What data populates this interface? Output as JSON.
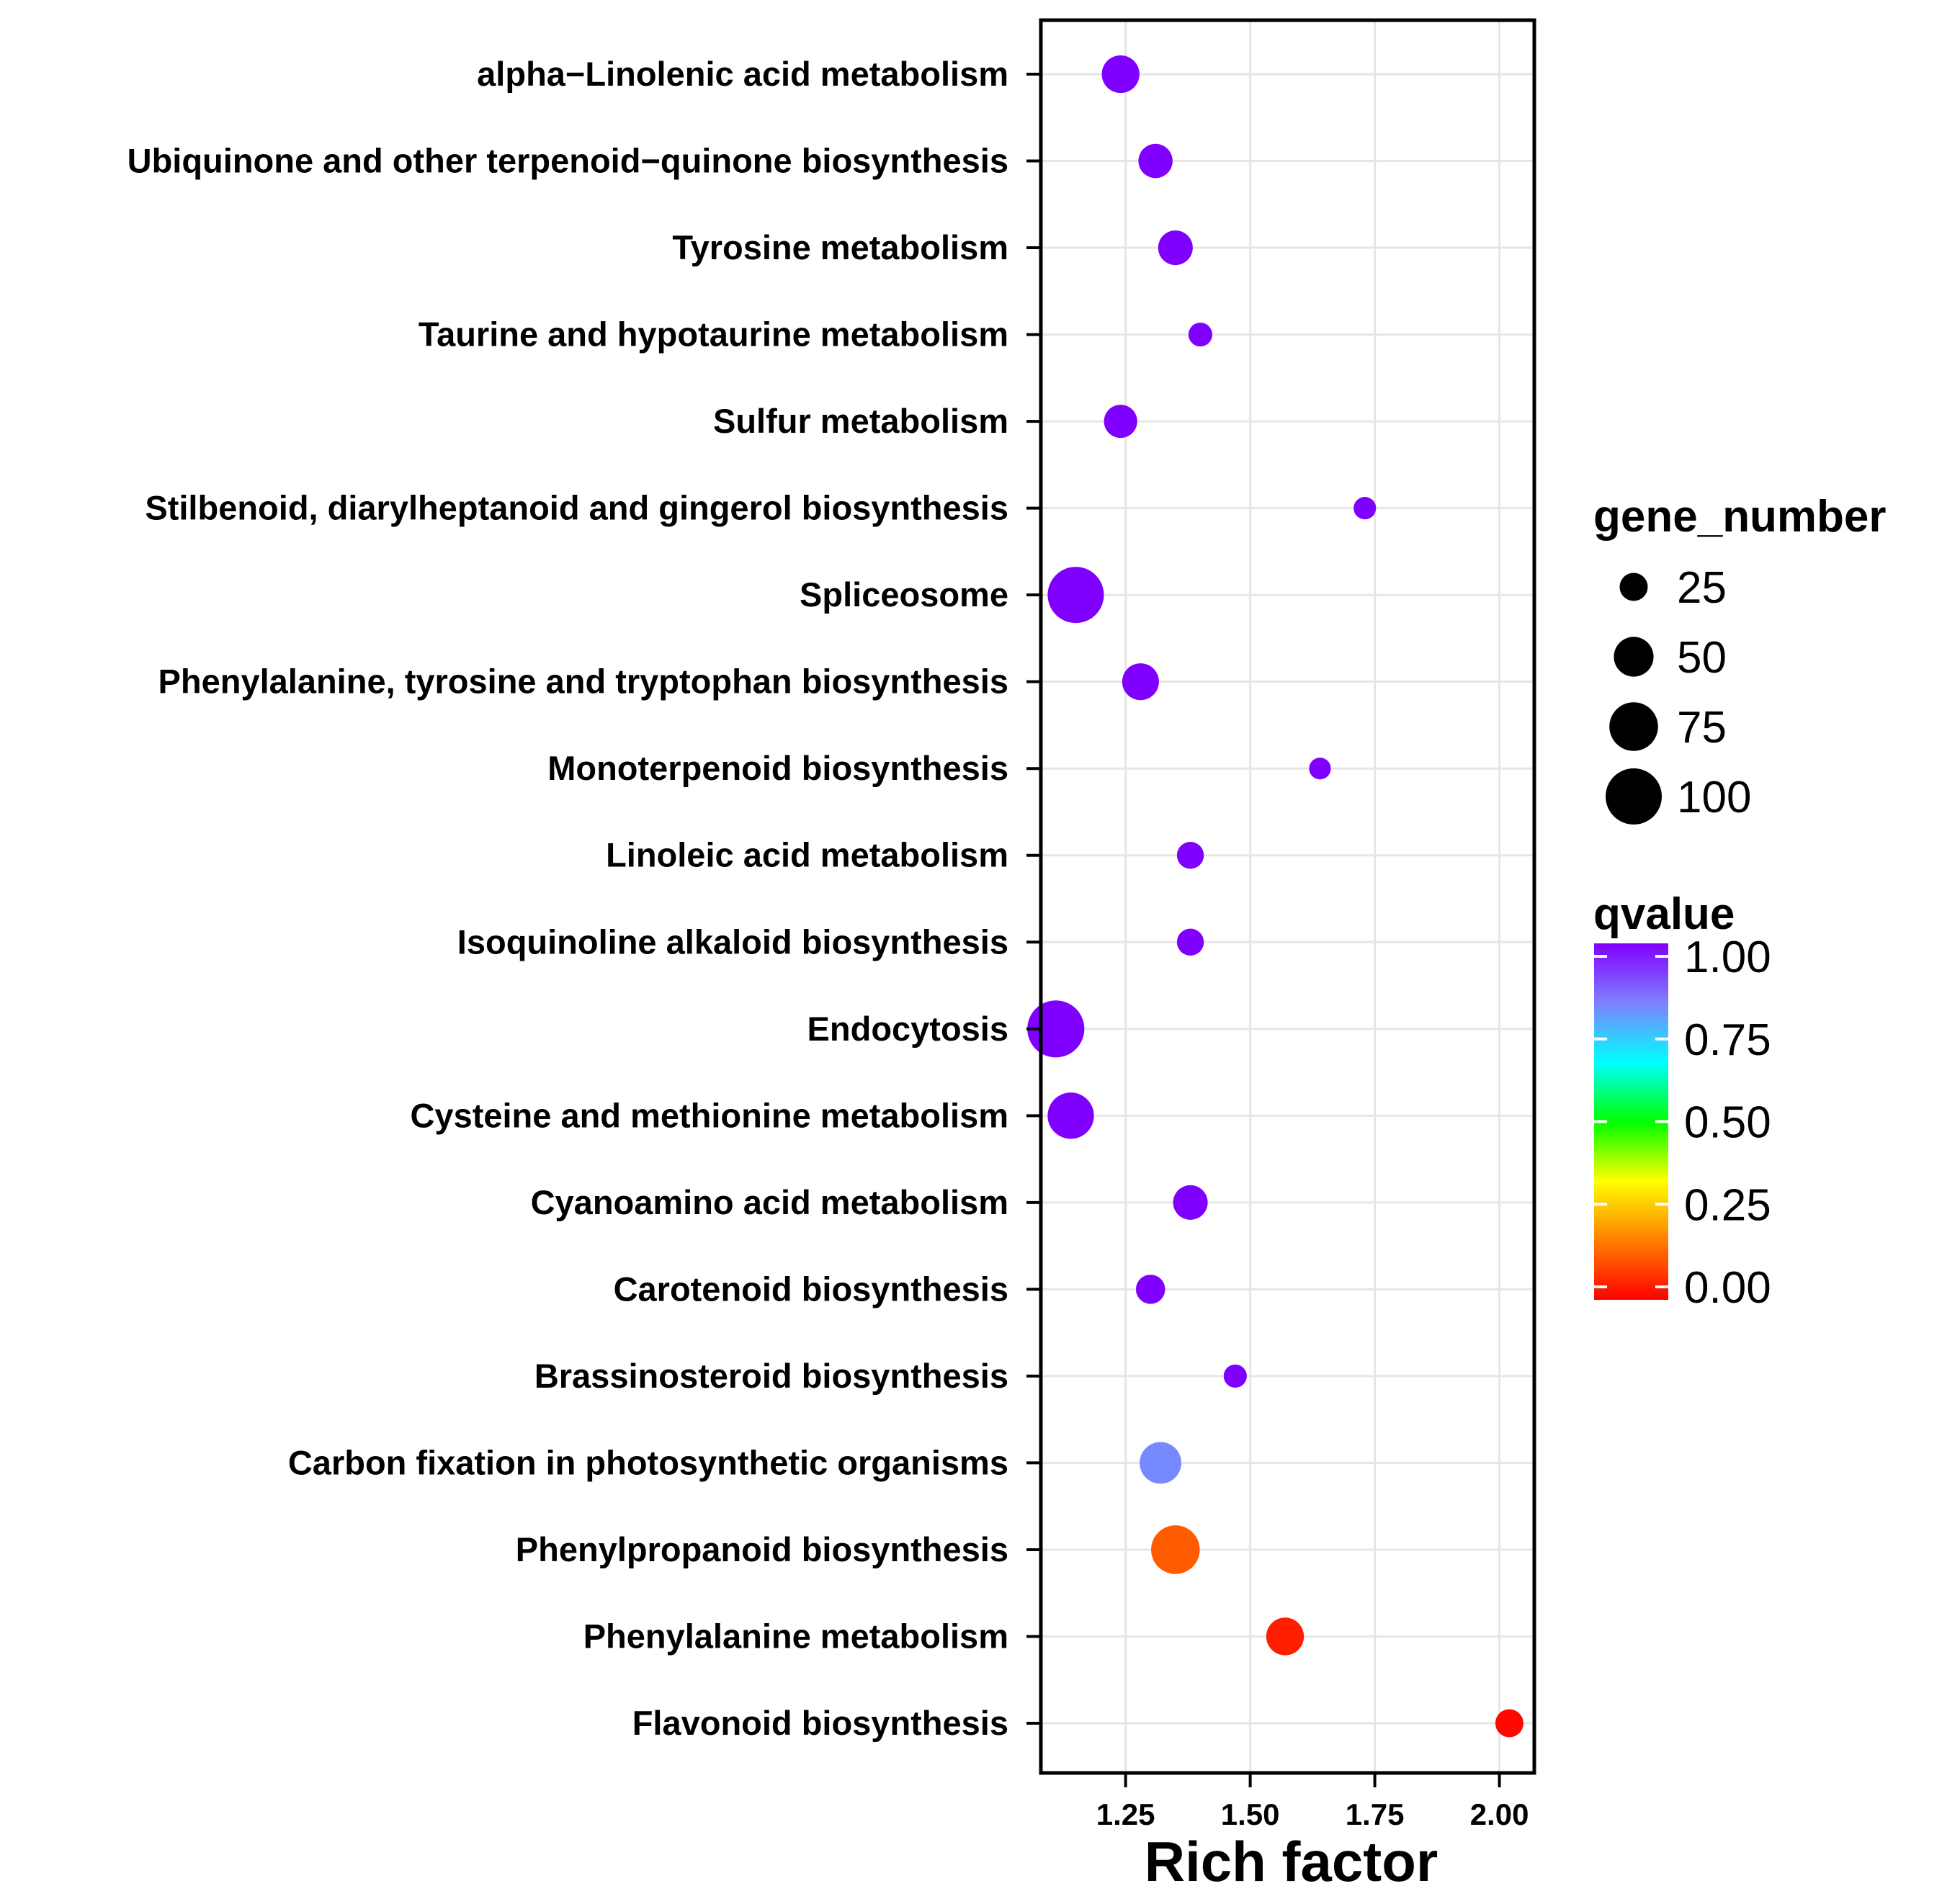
{
  "chart_data": {
    "type": "scatter",
    "title": "",
    "xlabel": "Rich factor",
    "ylabel": "",
    "xlim": [
      1.08,
      2.07
    ],
    "x_ticks": [
      "1.25",
      "1.50",
      "1.75",
      "2.00"
    ],
    "x_tick_values": [
      1.25,
      1.5,
      1.75,
      2.0
    ],
    "grid": true,
    "categories": [
      "alpha−Linolenic acid metabolism",
      "Ubiquinone and other terpenoid−quinone biosynthesis",
      "Tyrosine metabolism",
      "Taurine and hypotaurine metabolism",
      "Sulfur metabolism",
      "Stilbenoid, diarylheptanoid and gingerol biosynthesis",
      "Spliceosome",
      "Phenylalanine, tyrosine and tryptophan biosynthesis",
      "Monoterpenoid biosynthesis",
      "Linoleic acid metabolism",
      "Isoquinoline alkaloid biosynthesis",
      "Endocytosis",
      "Cysteine and methionine metabolism",
      "Cyanoamino acid metabolism",
      "Carotenoid biosynthesis",
      "Brassinosteroid biosynthesis",
      "Carbon fixation in photosynthetic organisms",
      "Phenylpropanoid biosynthesis",
      "Phenylalanine metabolism",
      "Flavonoid biosynthesis"
    ],
    "points": [
      {
        "rich_factor": 1.24,
        "gene_number": 45,
        "qvalue": 1.0
      },
      {
        "rich_factor": 1.31,
        "gene_number": 37,
        "qvalue": 1.0
      },
      {
        "rich_factor": 1.35,
        "gene_number": 38,
        "qvalue": 1.0
      },
      {
        "rich_factor": 1.4,
        "gene_number": 18,
        "qvalue": 1.0
      },
      {
        "rich_factor": 1.24,
        "gene_number": 35,
        "qvalue": 1.0
      },
      {
        "rich_factor": 1.73,
        "gene_number": 16,
        "qvalue": 1.0
      },
      {
        "rich_factor": 1.15,
        "gene_number": 100,
        "qvalue": 1.0
      },
      {
        "rich_factor": 1.28,
        "gene_number": 43,
        "qvalue": 1.0
      },
      {
        "rich_factor": 1.64,
        "gene_number": 15,
        "qvalue": 1.0
      },
      {
        "rich_factor": 1.38,
        "gene_number": 23,
        "qvalue": 1.0
      },
      {
        "rich_factor": 1.38,
        "gene_number": 23,
        "qvalue": 1.0
      },
      {
        "rich_factor": 1.11,
        "gene_number": 103,
        "qvalue": 1.0
      },
      {
        "rich_factor": 1.14,
        "gene_number": 68,
        "qvalue": 1.0
      },
      {
        "rich_factor": 1.38,
        "gene_number": 38,
        "qvalue": 1.0
      },
      {
        "rich_factor": 1.3,
        "gene_number": 27,
        "qvalue": 1.0
      },
      {
        "rich_factor": 1.47,
        "gene_number": 17,
        "qvalue": 1.0
      },
      {
        "rich_factor": 1.32,
        "gene_number": 55,
        "qvalue": 0.82
      },
      {
        "rich_factor": 1.35,
        "gene_number": 75,
        "qvalue": 0.12
      },
      {
        "rich_factor": 1.57,
        "gene_number": 45,
        "qvalue": 0.04
      },
      {
        "rich_factor": 2.02,
        "gene_number": 25,
        "qvalue": 0.01
      }
    ],
    "size_legend": {
      "title": "gene_number",
      "labels": [
        "25",
        "50",
        "75",
        "100"
      ],
      "values": [
        25,
        50,
        75,
        100
      ]
    },
    "color_legend": {
      "title": "qvalue",
      "labels": [
        "1.00",
        "0.75",
        "0.50",
        "0.25",
        "0.00"
      ],
      "values": [
        1.0,
        0.75,
        0.5,
        0.25,
        0.0
      ],
      "colors": [
        "#ff0000",
        "#ff7f00",
        "#ffff00",
        "#00ff00",
        "#00ffff",
        "#8080ff",
        "#8000ff"
      ]
    }
  }
}
